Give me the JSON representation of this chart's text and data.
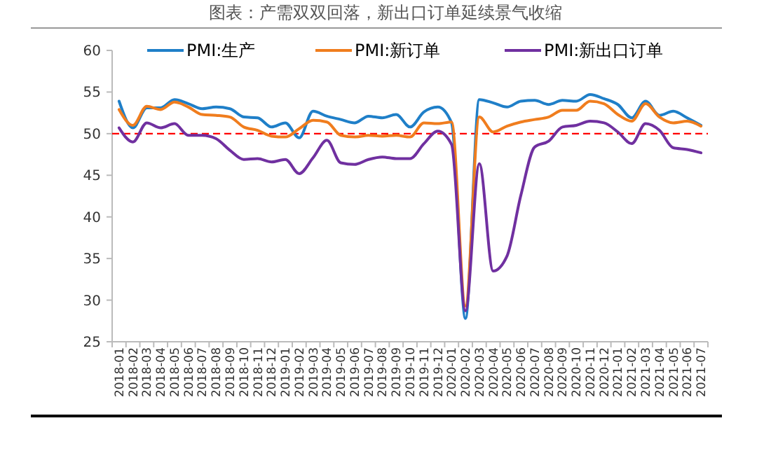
{
  "chart_data": {
    "type": "line",
    "title": "图表：产需双双回落，新出口订单延续景气收缩",
    "categories": [
      "2018-01",
      "2018-02",
      "2018-03",
      "2018-04",
      "2018-05",
      "2018-06",
      "2018-07",
      "2018-08",
      "2018-09",
      "2018-10",
      "2018-11",
      "2018-12",
      "2019-01",
      "2019-02",
      "2019-03",
      "2019-04",
      "2019-05",
      "2019-06",
      "2019-07",
      "2019-08",
      "2019-09",
      "2019-10",
      "2019-11",
      "2019-12",
      "2020-01",
      "2020-02",
      "2020-03",
      "2020-04",
      "2020-05",
      "2020-06",
      "2020-07",
      "2020-08",
      "2020-09",
      "2020-10",
      "2020-11",
      "2020-12",
      "2021-01",
      "2021-02",
      "2021-03",
      "2021-04",
      "2021-05",
      "2021-06",
      "2021-07"
    ],
    "series": [
      {
        "name": "PMI:生产",
        "color": "#1f7fc8",
        "values": [
          53.9,
          50.7,
          53.1,
          53.1,
          54.1,
          53.6,
          53.0,
          53.2,
          53.0,
          52.0,
          51.9,
          50.8,
          51.3,
          49.5,
          52.7,
          52.1,
          51.7,
          51.3,
          52.1,
          51.9,
          52.3,
          50.8,
          52.6,
          53.2,
          51.3,
          27.8,
          54.1,
          53.7,
          53.2,
          53.9,
          54.0,
          53.5,
          54.0,
          53.9,
          54.7,
          54.2,
          53.5,
          51.9,
          53.9,
          52.2,
          52.7,
          51.9,
          51.0
        ]
      },
      {
        "name": "PMI:新订单",
        "color": "#f07d1e",
        "values": [
          52.9,
          51.0,
          53.3,
          52.9,
          53.8,
          53.2,
          52.3,
          52.2,
          52.0,
          50.8,
          50.4,
          49.7,
          49.6,
          50.6,
          51.6,
          51.4,
          49.8,
          49.6,
          49.8,
          49.7,
          49.8,
          49.6,
          51.3,
          51.2,
          51.4,
          29.3,
          52.0,
          50.2,
          50.9,
          51.4,
          51.7,
          52.0,
          52.8,
          52.8,
          53.9,
          53.6,
          52.3,
          51.5,
          53.6,
          52.0,
          51.3,
          51.5,
          50.9
        ]
      },
      {
        "name": "PMI:新出口订单",
        "color": "#7030a0",
        "values": [
          50.7,
          49.0,
          51.3,
          50.7,
          51.2,
          49.8,
          49.8,
          49.4,
          48.0,
          46.9,
          47.0,
          46.6,
          46.9,
          45.2,
          47.1,
          49.2,
          46.5,
          46.3,
          46.9,
          47.2,
          47.0,
          47.0,
          48.8,
          50.3,
          48.7,
          28.7,
          46.4,
          33.5,
          35.3,
          42.6,
          48.4,
          49.1,
          50.8,
          51.0,
          51.5,
          51.3,
          50.2,
          48.8,
          51.2,
          50.4,
          48.3,
          48.1,
          47.7
        ]
      }
    ],
    "ylim": [
      25,
      60
    ],
    "yticks": [
      25,
      30,
      35,
      40,
      45,
      50,
      55,
      60
    ],
    "ref_lines": [
      {
        "axis": "y",
        "value": 50,
        "color": "#ff0000",
        "line_style": "dashed"
      }
    ],
    "legend": "top",
    "grid": false,
    "line_style": "solid"
  }
}
